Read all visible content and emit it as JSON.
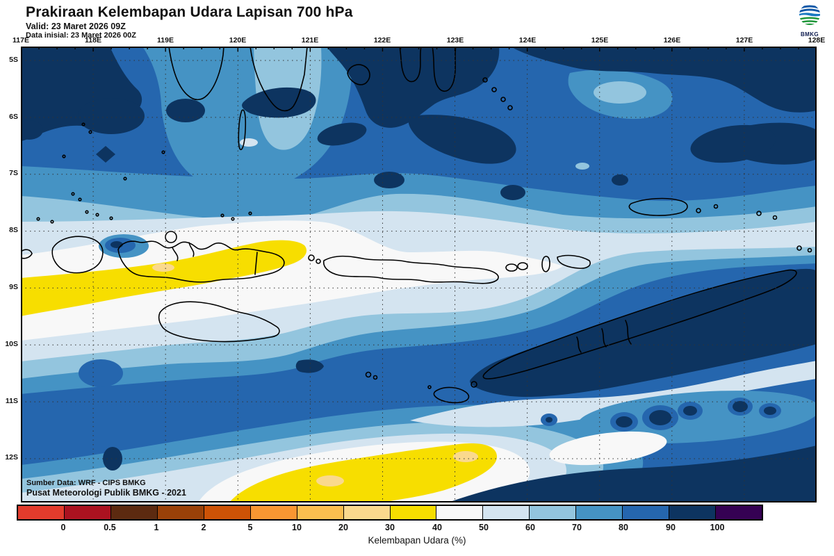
{
  "header": {
    "title": "Prakiraan Kelembapan Udara Lapisan 700 hPa",
    "valid": "Valid: 23 Maret 2026 09Z",
    "init": "Data inisial: 23 Maret 2026 00Z"
  },
  "logo": {
    "label": "BMKG"
  },
  "map": {
    "top_ticks": [
      "117E",
      "118E",
      "119E",
      "120E",
      "121E",
      "122E",
      "123E",
      "124E",
      "125E",
      "126E",
      "127E",
      "128E"
    ],
    "lat_ticks": [
      "5S",
      "6S",
      "7S",
      "8S",
      "9S",
      "10S",
      "11S",
      "12S"
    ],
    "source1": "Sumber Data: WRF - CIPS BMKG",
    "source2": "Pusat Meteorologi Publik BMKG - 2021"
  },
  "colorbar": {
    "caption": "Kelembapan Udara (%)",
    "tick_labels": [
      "0",
      "0.5",
      "1",
      "2",
      "5",
      "10",
      "20",
      "30",
      "40",
      "50",
      "60",
      "70",
      "80",
      "90",
      "100"
    ],
    "colors": [
      "#E23B2C",
      "#AB1220",
      "#5C2A10",
      "#9A4108",
      "#CD5206",
      "#F89632",
      "#FBBE4F",
      "#FAD98D",
      "#F7DE00",
      "#F8F8F8",
      "#D4E4F0",
      "#93C5DE",
      "#4593C4",
      "#2566AE",
      "#0D3460",
      "#350153"
    ]
  },
  "chart_data": {
    "type": "heatmap",
    "title": "Prakiraan Kelembapan Udara Lapisan 700 hPa",
    "variable": "Kelembapan Udara (%)",
    "level": "700 hPa",
    "valid_time": "23 Maret 2026 09Z",
    "init_time": "23 Maret 2026 00Z",
    "x_ticks": [
      "117E",
      "118E",
      "119E",
      "120E",
      "121E",
      "122E",
      "123E",
      "124E",
      "125E",
      "126E",
      "127E",
      "128E"
    ],
    "y_ticks": [
      "5S",
      "6S",
      "7S",
      "8S",
      "9S",
      "10S",
      "11S",
      "12S"
    ],
    "scale_breaks": [
      0,
      0.5,
      1,
      2,
      5,
      10,
      20,
      30,
      40,
      50,
      60,
      70,
      80,
      90,
      100
    ],
    "palette": [
      "#E23B2C",
      "#AB1220",
      "#5C2A10",
      "#9A4108",
      "#CD5206",
      "#F89632",
      "#FBBE4F",
      "#FAD98D",
      "#F7DE00",
      "#F8F8F8",
      "#D4E4F0",
      "#93C5DE",
      "#4593C4",
      "#2566AE",
      "#0D3460",
      "#350153"
    ],
    "legend_position": "bottom",
    "grid": "dotted"
  }
}
